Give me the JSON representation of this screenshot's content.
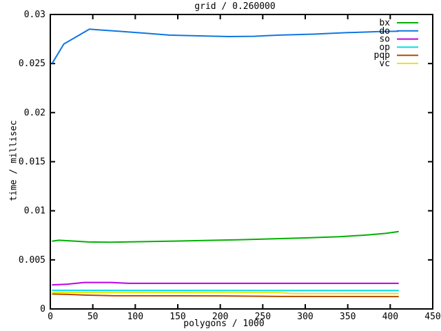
{
  "chart_data": {
    "type": "line",
    "title": "grid / 0.260000",
    "xlabel": "polygons / 1000",
    "ylabel": "time / millisec",
    "xlim": [
      0,
      450
    ],
    "ylim": [
      0,
      0.03
    ],
    "grid": false,
    "legend_position": "top-right-inside",
    "background": "#ffffff",
    "axis_color": "#000000",
    "xticks": {
      "values": [
        0,
        50,
        100,
        150,
        200,
        250,
        300,
        350,
        400,
        450
      ],
      "labels": [
        "0",
        "50",
        "100",
        "150",
        "200",
        "250",
        "300",
        "350",
        "400",
        "450"
      ]
    },
    "yticks": {
      "values": [
        0,
        0.005,
        0.01,
        0.015,
        0.02,
        0.025,
        0.03
      ],
      "labels": [
        "0",
        "0.005",
        "0.01",
        "0.015",
        "0.02",
        "0.025",
        "0.03"
      ]
    },
    "series": [
      {
        "name": "bx",
        "color": "#00b000",
        "points": [
          [
            2,
            0.0069
          ],
          [
            10,
            0.007
          ],
          [
            25,
            0.00693
          ],
          [
            45,
            0.00682
          ],
          [
            70,
            0.0068
          ],
          [
            100,
            0.00684
          ],
          [
            140,
            0.0069
          ],
          [
            180,
            0.00697
          ],
          [
            220,
            0.00705
          ],
          [
            260,
            0.00714
          ],
          [
            300,
            0.00724
          ],
          [
            340,
            0.00736
          ],
          [
            370,
            0.00752
          ],
          [
            395,
            0.0077
          ],
          [
            410,
            0.00788
          ]
        ]
      },
      {
        "name": "do",
        "color": "#0e76e0",
        "points": [
          [
            2,
            0.025
          ],
          [
            16,
            0.027
          ],
          [
            30,
            0.0277
          ],
          [
            46,
            0.0285
          ],
          [
            62,
            0.0284
          ],
          [
            80,
            0.0283
          ],
          [
            110,
            0.0281
          ],
          [
            140,
            0.0279
          ],
          [
            175,
            0.02782
          ],
          [
            210,
            0.02775
          ],
          [
            240,
            0.02778
          ],
          [
            270,
            0.0279
          ],
          [
            310,
            0.028
          ],
          [
            350,
            0.02815
          ],
          [
            385,
            0.02825
          ],
          [
            410,
            0.0283
          ]
        ]
      },
      {
        "name": "so",
        "color": "#bc00e8",
        "points": [
          [
            2,
            0.00245
          ],
          [
            20,
            0.00252
          ],
          [
            40,
            0.0027
          ],
          [
            72,
            0.0027
          ],
          [
            92,
            0.00261
          ],
          [
            200,
            0.00261
          ],
          [
            300,
            0.00261
          ],
          [
            410,
            0.00261
          ]
        ]
      },
      {
        "name": "op",
        "color": "#00e0e0",
        "points": [
          [
            2,
            0.0019
          ],
          [
            100,
            0.00189
          ],
          [
            250,
            0.00188
          ],
          [
            410,
            0.00188
          ]
        ]
      },
      {
        "name": "pqp",
        "color": "#b44a00",
        "points": [
          [
            2,
            0.00152
          ],
          [
            20,
            0.00148
          ],
          [
            40,
            0.00141
          ],
          [
            75,
            0.00134
          ],
          [
            200,
            0.00133
          ],
          [
            270,
            0.00127
          ],
          [
            410,
            0.00126
          ]
        ]
      },
      {
        "name": "vc",
        "color": "#e8e800",
        "points": [
          [
            2,
            0.00168
          ],
          [
            140,
            0.00167
          ],
          [
            270,
            0.00166
          ],
          [
            285,
            0.00156
          ],
          [
            410,
            0.00156
          ]
        ]
      }
    ]
  }
}
